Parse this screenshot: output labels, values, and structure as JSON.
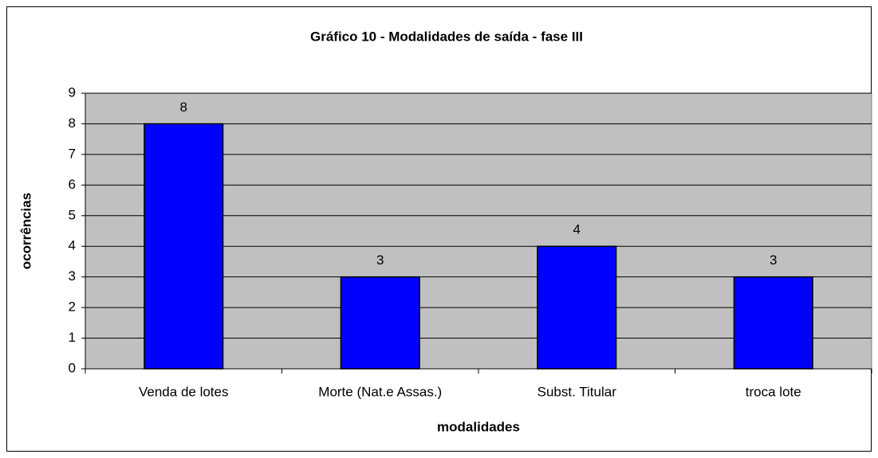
{
  "chart_data": {
    "type": "bar",
    "title": "Gráfico 10 - Modalidades de saída - fase III",
    "x_label": "modalidades",
    "y_label": "ocorrências",
    "categories": [
      "Venda de lotes",
      "Morte (Nat.e Assas.)",
      "Subst. Titular",
      "troca lote"
    ],
    "values": [
      8,
      3,
      4,
      3
    ],
    "color": "#0000ff",
    "ylim": [
      0,
      9
    ],
    "yticks": [
      0,
      1,
      2,
      3,
      4,
      5,
      6,
      7,
      8,
      9
    ],
    "grid": true
  }
}
